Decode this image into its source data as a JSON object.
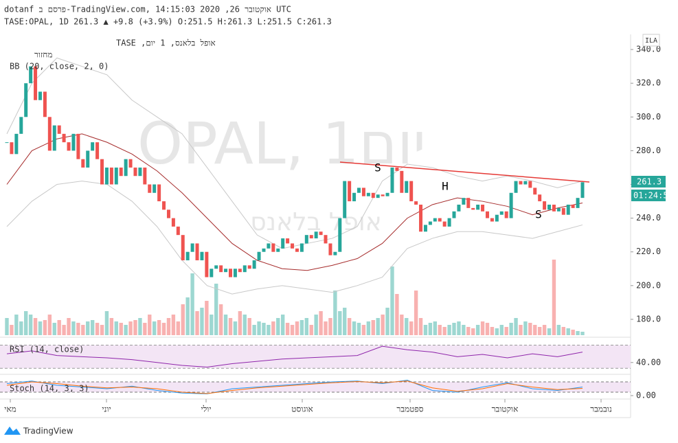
{
  "header": {
    "line1": "dotanf פרסם ב-TradingView.com, אוקטובר 26, 2020 14:15:03 UTC",
    "line2": "TASE:OPAL, 1D 261.3 ▲ +9.8 (+3.9%) O:251.5 H:261.3 L:251.5 C:261.3"
  },
  "chart_data": {
    "type": "candlestick",
    "legend": [
      "אופל בלאנס, 1 יום, TASE",
      "מחזור",
      "BB (20, close, 2, 0)"
    ],
    "watermark": [
      "OPAL, 1יום",
      "אופל בלאנס"
    ],
    "annotations": [
      "S",
      "H",
      "S"
    ],
    "currency": "ILA",
    "last_price_label": "261.3",
    "countdown": "01:24:58",
    "months": [
      "מאי",
      "יוני",
      "יולי",
      "אוגוסט",
      "ספטמבר",
      "אוקטובר",
      "נובמבר"
    ],
    "up_color": "#26a69a",
    "down_color": "#ef5350",
    "ylim": [
      170.6,
      349.0
    ],
    "yticks": [
      {
        "value": 180,
        "label": "180.0"
      },
      {
        "value": 200,
        "label": "200.0"
      },
      {
        "value": 220,
        "label": "220.0"
      },
      {
        "value": 240,
        "label": "240.0"
      },
      {
        "value": 260,
        "label": "260.0"
      },
      {
        "value": 280,
        "label": "280.0"
      },
      {
        "value": 300,
        "label": "300.0"
      },
      {
        "value": 320,
        "label": "320.0"
      },
      {
        "value": 340,
        "label": "340.0"
      }
    ],
    "close": [
      285,
      278,
      290,
      300,
      320,
      330,
      310,
      315,
      300,
      280,
      295,
      290,
      285,
      280,
      290,
      275,
      270,
      280,
      285,
      275,
      260,
      270,
      260,
      270,
      265,
      275,
      270,
      265,
      270,
      260,
      255,
      260,
      250,
      245,
      240,
      235,
      230,
      215,
      220,
      225,
      215,
      220,
      205,
      210,
      212,
      208,
      210,
      205,
      210,
      208,
      212,
      210,
      215,
      220,
      222,
      225,
      220,
      222,
      228,
      225,
      222,
      220,
      225,
      230,
      228,
      232,
      230,
      225,
      218,
      220,
      240,
      262,
      250,
      255,
      258,
      253,
      255,
      252,
      254,
      253,
      255,
      270,
      268,
      255,
      262,
      250,
      248,
      232,
      236,
      238,
      240,
      238,
      235,
      240,
      244,
      248,
      252,
      246,
      245,
      248,
      244,
      240,
      238,
      242,
      244,
      240,
      255,
      262,
      260,
      262,
      258,
      254,
      250,
      245,
      248,
      244,
      246,
      242,
      248,
      246,
      252,
      261.3
    ],
    "volume_ylim": [
      0,
      120
    ],
    "volume": [
      25,
      15,
      30,
      20,
      35,
      30,
      25,
      20,
      22,
      30,
      18,
      22,
      15,
      25,
      20,
      18,
      15,
      20,
      22,
      18,
      15,
      35,
      25,
      20,
      18,
      15,
      20,
      22,
      25,
      18,
      30,
      20,
      22,
      18,
      25,
      30,
      20,
      45,
      55,
      90,
      35,
      40,
      50,
      30,
      75,
      45,
      30,
      25,
      20,
      35,
      30,
      25,
      15,
      20,
      18,
      15,
      20,
      25,
      30,
      18,
      15,
      20,
      22,
      25,
      15,
      30,
      35,
      20,
      25,
      65,
      35,
      40,
      25,
      20,
      18,
      15,
      20,
      22,
      25,
      30,
      40,
      100,
      60,
      30,
      25,
      20,
      65,
      25,
      15,
      18,
      20,
      15,
      12,
      15,
      18,
      20,
      15,
      12,
      10,
      15,
      20,
      18,
      12,
      10,
      15,
      12,
      18,
      25,
      15,
      20,
      18,
      15,
      12,
      15,
      10,
      110,
      15,
      12,
      10,
      8,
      6,
      5
    ],
    "bb": [
      {
        "name": "upper",
        "color": "#c8c8c8",
        "values": [
          290,
          320,
          335,
          330,
          325,
          310,
          300,
          290,
          270,
          250,
          230,
          222,
          225,
          228,
          235,
          262,
          272,
          270,
          265,
          262,
          265,
          262,
          258,
          262
        ]
      },
      {
        "name": "basis",
        "color": "#a52a2a",
        "values": [
          260,
          280,
          287,
          290,
          285,
          278,
          268,
          255,
          240,
          225,
          215,
          210,
          209,
          212,
          216,
          225,
          240,
          248,
          252,
          250,
          247,
          242,
          246,
          249
        ]
      },
      {
        "name": "lower",
        "color": "#c8c8c8",
        "values": [
          235,
          250,
          260,
          262,
          260,
          250,
          235,
          215,
          200,
          195,
          198,
          200,
          198,
          196,
          200,
          205,
          222,
          228,
          232,
          232,
          230,
          228,
          232,
          236
        ]
      }
    ]
  },
  "rsi": {
    "label": "RSI (14, close)",
    "color": "#8e24aa",
    "ylim": [
      22,
      80
    ],
    "band": [
      30,
      70
    ],
    "yticks": [
      {
        "value": 40,
        "label": "40.00"
      }
    ],
    "values": [
      55,
      60,
      52,
      50,
      48,
      45,
      40,
      35,
      32,
      38,
      42,
      46,
      48,
      50,
      52,
      68,
      62,
      58,
      50,
      54,
      48,
      55,
      50,
      58
    ]
  },
  "stoch": {
    "label": "Stoch (14, 3, 3)",
    "ylim": [
      0,
      100
    ],
    "band": [
      20,
      80
    ],
    "yticks": [
      {
        "value": 0,
        "label": "0.00"
      }
    ],
    "series": [
      {
        "name": "%K",
        "color": "#2196f3",
        "values": [
          70,
          85,
          60,
          50,
          40,
          55,
          30,
          15,
          10,
          40,
          50,
          60,
          70,
          80,
          85,
          70,
          90,
          30,
          20,
          50,
          75,
          40,
          30,
          50
        ]
      },
      {
        "name": "%D",
        "color": "#ff6d00",
        "values": [
          60,
          80,
          70,
          55,
          45,
          50,
          40,
          20,
          12,
          30,
          45,
          55,
          65,
          75,
          82,
          75,
          85,
          45,
          25,
          40,
          70,
          50,
          35,
          42
        ]
      }
    ]
  },
  "footer": {
    "brand": "TradingView"
  }
}
